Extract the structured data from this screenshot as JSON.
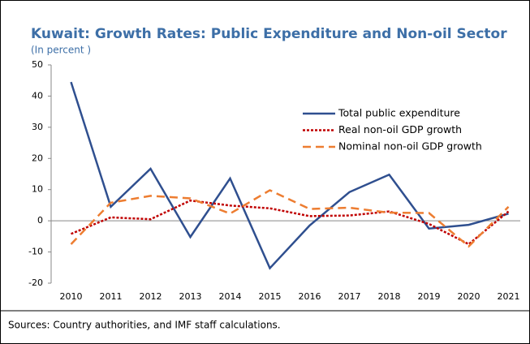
{
  "chart_data": {
    "type": "line",
    "title": "Kuwait: Growth Rates: Public Expenditure and Non-oil Sector",
    "subtitle": "(In percent )",
    "source": "Sources: Country authorities, and IMF staff calculations.",
    "categories": [
      "2010",
      "2011",
      "2012",
      "2013",
      "2014",
      "2015",
      "2016",
      "2017",
      "2018",
      "2019",
      "2020",
      "2021"
    ],
    "series": [
      {
        "name": "Total public expenditure",
        "color": "#2f4f8f",
        "dash": "solid",
        "values": [
          44.5,
          4.5,
          16.7,
          -5.2,
          13.6,
          -15.2,
          -1.5,
          9.2,
          14.8,
          -2.5,
          -1.3,
          2.3
        ]
      },
      {
        "name": "Real non-oil GDP growth",
        "color": "#c00000",
        "dash": "dotted",
        "values": [
          -4.2,
          1.1,
          0.5,
          6.5,
          4.9,
          4.0,
          1.5,
          1.7,
          3.0,
          -1.0,
          -7.5,
          3.0
        ]
      },
      {
        "name": "Nominal non-oil GDP growth",
        "color": "#ed7d31",
        "dash": "dashed",
        "values": [
          -7.5,
          5.8,
          8.0,
          7.2,
          2.3,
          9.8,
          3.8,
          4.2,
          2.6,
          2.5,
          -8.2,
          4.5
        ]
      }
    ],
    "ylim": [
      -20,
      50
    ],
    "yticks": [
      -20,
      -10,
      0,
      10,
      20,
      30,
      40,
      50
    ],
    "grid": false
  }
}
